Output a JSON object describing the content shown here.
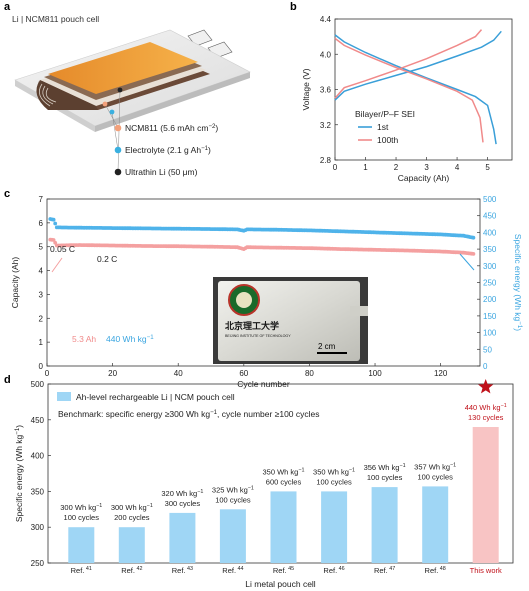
{
  "panel_letters": {
    "a": "a",
    "b": "b",
    "c": "c",
    "d": "d"
  },
  "panel_a": {
    "title": "Li | NCM811 pouch cell",
    "callouts": [
      {
        "label": "NCM811 (5.6 mAh cm",
        "sup": "−2",
        "tail": ")",
        "color": "#f2a07a"
      },
      {
        "label": "Electrolyte (2.1 g Ah",
        "sup": "−1",
        "tail": ")",
        "color": "#3ab0e0"
      },
      {
        "label": "Ultrathin Li (50 μm)",
        "sup": "",
        "tail": "",
        "color": "#222222"
      }
    ]
  },
  "chart_data": [
    {
      "panel": "b",
      "type": "line",
      "xlabel": "Capacity (Ah)",
      "ylabel": "Voltage (V)",
      "xlim": [
        0,
        5.8
      ],
      "ylim": [
        2.8,
        4.4
      ],
      "xticks": [
        "0",
        "1",
        "2",
        "3",
        "4",
        "5"
      ],
      "yticks": [
        "2.8",
        "3.2",
        "3.6",
        "4.0",
        "4.4"
      ],
      "legend_title": "Bilayer/P–F SEI",
      "series": [
        {
          "name": "1st",
          "color": "#3a9fd8",
          "charge": [
            [
              0,
              3.48
            ],
            [
              0.3,
              3.58
            ],
            [
              1,
              3.66
            ],
            [
              2,
              3.76
            ],
            [
              3,
              3.86
            ],
            [
              4,
              3.98
            ],
            [
              4.8,
              4.08
            ],
            [
              5.2,
              4.16
            ],
            [
              5.45,
              4.26
            ]
          ],
          "discharge": [
            [
              0,
              4.22
            ],
            [
              0.3,
              4.14
            ],
            [
              1,
              4.02
            ],
            [
              2,
              3.87
            ],
            [
              3,
              3.73
            ],
            [
              4,
              3.6
            ],
            [
              4.6,
              3.52
            ],
            [
              5,
              3.42
            ],
            [
              5.2,
              3.15
            ],
            [
              5.28,
              2.98
            ]
          ]
        },
        {
          "name": "100th",
          "color": "#f08a8a",
          "charge": [
            [
              0,
              3.5
            ],
            [
              0.3,
              3.62
            ],
            [
              1,
              3.7
            ],
            [
              2,
              3.82
            ],
            [
              3,
              3.95
            ],
            [
              4,
              4.1
            ],
            [
              4.6,
              4.2
            ],
            [
              4.8,
              4.28
            ]
          ],
          "discharge": [
            [
              0,
              4.18
            ],
            [
              0.3,
              4.1
            ],
            [
              1,
              3.99
            ],
            [
              2,
              3.85
            ],
            [
              3,
              3.72
            ],
            [
              4,
              3.58
            ],
            [
              4.5,
              3.48
            ],
            [
              4.75,
              3.28
            ],
            [
              4.85,
              3.0
            ]
          ]
        }
      ]
    },
    {
      "panel": "c",
      "type": "scatter",
      "xlabel": "Cycle number",
      "ylabel_left": "Capacity (Ah)",
      "ylabel_right": "Specific energy (Wh kg",
      "ylabel_right_sup": "−1",
      "ylabel_right_tail": ")",
      "xlim": [
        0,
        132
      ],
      "ylim_left": [
        0,
        7
      ],
      "ylim_right": [
        0,
        500
      ],
      "xticks": [
        "0",
        "20",
        "40",
        "60",
        "80",
        "100",
        "120"
      ],
      "yticks_left": [
        "0",
        "1",
        "2",
        "3",
        "4",
        "5",
        "6",
        "7"
      ],
      "yticks_right": [
        "0",
        "50",
        "100",
        "150",
        "200",
        "250",
        "300",
        "350",
        "400",
        "450",
        "500"
      ],
      "annotations": {
        "rate1": "0.05 C",
        "rate2": "0.2 C",
        "cap_label": "5.3 Ah",
        "energy_label": "440 Wh kg",
        "energy_sup": "−1"
      },
      "capacity_color": "#f4a0a0",
      "energy_color": "#4fb3ea",
      "capacity_points": [
        [
          1,
          5.3
        ],
        [
          2,
          5.28
        ],
        [
          3,
          5.05
        ],
        [
          10,
          5.07
        ],
        [
          20,
          5.05
        ],
        [
          30,
          5.03
        ],
        [
          40,
          5.02
        ],
        [
          50,
          5.0
        ],
        [
          58,
          4.98
        ],
        [
          60,
          4.9
        ],
        [
          61,
          4.98
        ],
        [
          70,
          4.96
        ],
        [
          80,
          4.94
        ],
        [
          90,
          4.9
        ],
        [
          100,
          4.87
        ],
        [
          110,
          4.84
        ],
        [
          120,
          4.8
        ],
        [
          127,
          4.75
        ],
        [
          130,
          4.7
        ]
      ],
      "energy_points": [
        [
          1,
          440
        ],
        [
          2,
          438
        ],
        [
          3,
          415
        ],
        [
          10,
          414
        ],
        [
          20,
          413
        ],
        [
          30,
          412
        ],
        [
          40,
          411
        ],
        [
          50,
          410
        ],
        [
          58,
          409
        ],
        [
          60,
          405
        ],
        [
          61,
          409
        ],
        [
          70,
          408
        ],
        [
          80,
          406
        ],
        [
          90,
          403
        ],
        [
          100,
          400
        ],
        [
          110,
          397
        ],
        [
          120,
          394
        ],
        [
          127,
          390
        ],
        [
          130,
          384
        ]
      ]
    },
    {
      "panel": "d",
      "type": "bar",
      "ylabel": "Specific energy (Wh kg",
      "ylabel_sup": "−1",
      "ylabel_tail": ")",
      "xlabel": "Li metal pouch cell",
      "ylim": [
        250,
        500
      ],
      "yticks": [
        "250",
        "300",
        "350",
        "400",
        "450",
        "500"
      ],
      "legend": "Ah-level rechargeable Li | NCM pouch cell",
      "benchmark": "Benchmark: specific energy ≥300 Wh kg",
      "benchmark_sup": "−1",
      "benchmark_tail": ", cycle number ≥100 cycles",
      "categories": [
        "Ref.",
        "Ref.",
        "Ref.",
        "Ref.",
        "Ref.",
        "Ref.",
        "Ref.",
        "Ref.",
        "This work"
      ],
      "ref_sups": [
        "41",
        "42",
        "43",
        "44",
        "45",
        "46",
        "47",
        "48",
        ""
      ],
      "values": [
        300,
        300,
        320,
        325,
        350,
        350,
        356,
        357,
        440
      ],
      "bar_labels": [
        {
          "energy": "300 Wh kg",
          "cycles": "100 cycles"
        },
        {
          "energy": "300 Wh kg",
          "cycles": "200 cycles"
        },
        {
          "energy": "320 Wh kg",
          "cycles": "300 cycles"
        },
        {
          "energy": "325 Wh kg",
          "cycles": "100 cycles"
        },
        {
          "energy": "350 Wh kg",
          "cycles": "600 cycles"
        },
        {
          "energy": "350 Wh kg",
          "cycles": "100 cycles"
        },
        {
          "energy": "356 Wh kg",
          "cycles": "100 cycles"
        },
        {
          "energy": "357 Wh kg",
          "cycles": "100 cycles"
        },
        {
          "energy": "440 Wh kg",
          "cycles": "130 cycles"
        }
      ],
      "unit_sup": "−1",
      "bar_color": "#9fd6f5",
      "highlight_color": "#f8c4c4",
      "star_color": "#c0111a"
    }
  ],
  "inset_photo": {
    "seal_text": "北京理工大学",
    "seal_sub": "BEIJING INSTITUTE OF TECHNOLOGY",
    "scale": "2 cm"
  }
}
